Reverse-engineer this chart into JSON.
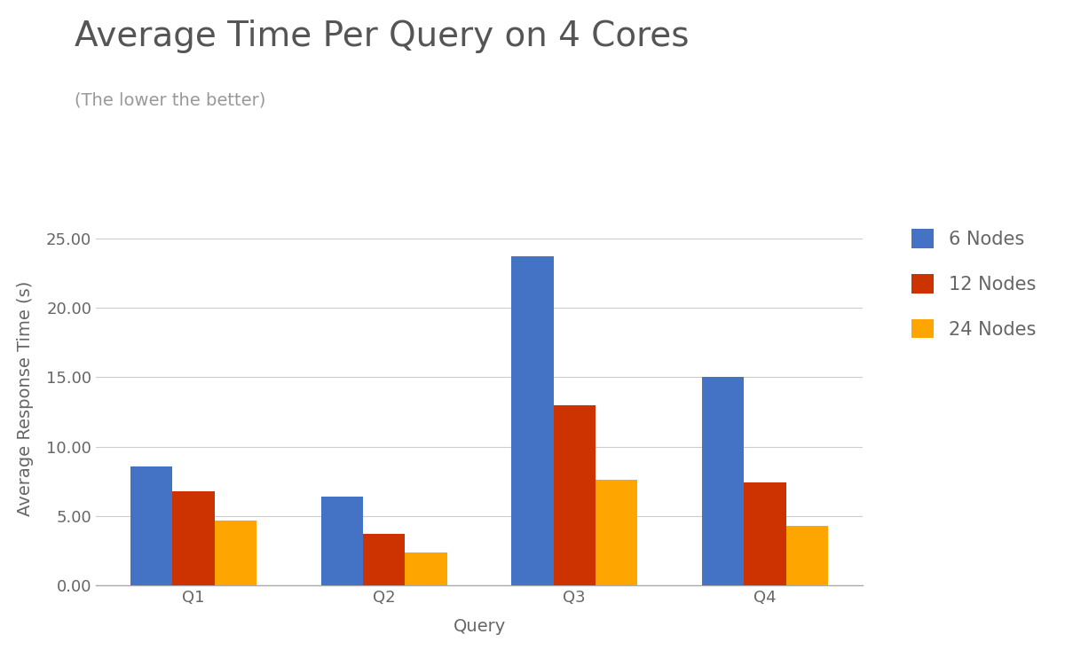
{
  "title": "Average Time Per Query on 4 Cores",
  "subtitle": "(The lower the better)",
  "xlabel": "Query",
  "ylabel": "Average Response Time (s)",
  "categories": [
    "Q1",
    "Q2",
    "Q3",
    "Q4"
  ],
  "series": [
    {
      "label": "6 Nodes",
      "color": "#4472C4",
      "values": [
        8.6,
        6.4,
        23.7,
        15.0
      ]
    },
    {
      "label": "12 Nodes",
      "color": "#CC3300",
      "values": [
        6.8,
        3.7,
        13.0,
        7.4
      ]
    },
    {
      "label": "24 Nodes",
      "color": "#FFA500",
      "values": [
        4.7,
        2.4,
        7.6,
        4.3
      ]
    }
  ],
  "ylim": [
    0,
    27
  ],
  "yticks": [
    0.0,
    5.0,
    10.0,
    15.0,
    20.0,
    25.0
  ],
  "background_color": "#ffffff",
  "grid_color": "#cccccc",
  "title_fontsize": 28,
  "subtitle_fontsize": 14,
  "label_fontsize": 14,
  "tick_fontsize": 13,
  "legend_fontsize": 15,
  "bar_width": 0.22,
  "title_color": "#555555",
  "subtitle_color": "#999999",
  "axis_label_color": "#666666",
  "tick_color": "#666666"
}
